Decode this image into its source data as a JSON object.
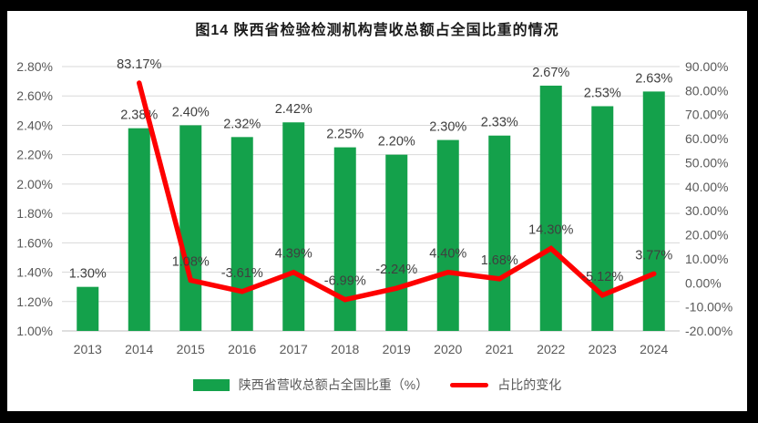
{
  "title": "图14  陕西省检验检测机构营收总额占全国比重的情况",
  "legend": {
    "bar_label": "陕西省营收总额占全国比重（%）",
    "line_label": "占比的变化"
  },
  "colors": {
    "bar": "#14A14B",
    "line": "#FE0000",
    "grid": "#D9D9D9",
    "axis_line": "#BFBFBF",
    "axis_text": "#595959",
    "data_label": "#3F3F3F",
    "title_text": "#1A1A1A",
    "frame": "#000000",
    "background": "#FFFFFF"
  },
  "chart_data": {
    "type": "bar+line combo",
    "title": "图14  陕西省检验检测机构营收总额占全国比重的情况",
    "categories": [
      "2013",
      "2014",
      "2015",
      "2016",
      "2017",
      "2018",
      "2019",
      "2020",
      "2021",
      "2022",
      "2023",
      "2024"
    ],
    "series": [
      {
        "name": "陕西省营收总额占全国比重（%）",
        "type": "bar",
        "axis": "left",
        "values": [
          1.3,
          2.38,
          2.4,
          2.32,
          2.42,
          2.25,
          2.2,
          2.3,
          2.33,
          2.67,
          2.53,
          2.63
        ],
        "labels": [
          "1.30%",
          "2.38%",
          "2.40%",
          "2.32%",
          "2.42%",
          "2.25%",
          "2.20%",
          "2.30%",
          "2.33%",
          "2.67%",
          "2.53%",
          "2.63%"
        ]
      },
      {
        "name": "占比的变化",
        "type": "line",
        "axis": "right",
        "values": [
          null,
          83.17,
          1.08,
          -3.61,
          4.39,
          -6.99,
          -2.24,
          4.4,
          1.68,
          14.3,
          -5.12,
          3.77
        ],
        "labels": [
          null,
          "83.17%",
          "1.08%",
          "-3.61%",
          "4.39%",
          "-6.99%",
          "-2.24%",
          "4.40%",
          "1.68%",
          "14.30%",
          "-5.12%",
          "3.77%"
        ]
      }
    ],
    "left_axis": {
      "min": 1.0,
      "max": 2.8,
      "step": 0.2,
      "ticks": [
        "2.80%",
        "2.60%",
        "2.40%",
        "2.20%",
        "2.00%",
        "1.80%",
        "1.60%",
        "1.40%",
        "1.20%",
        "1.00%"
      ]
    },
    "right_axis": {
      "min": -20,
      "max": 90,
      "step": 10,
      "ticks": [
        "90.00%",
        "80.00%",
        "70.00%",
        "60.00%",
        "50.00%",
        "40.00%",
        "30.00%",
        "20.00%",
        "10.00%",
        "0.00%",
        "-10.00%",
        "-20.00%"
      ]
    },
    "grid": true,
    "legend_position": "bottom"
  }
}
